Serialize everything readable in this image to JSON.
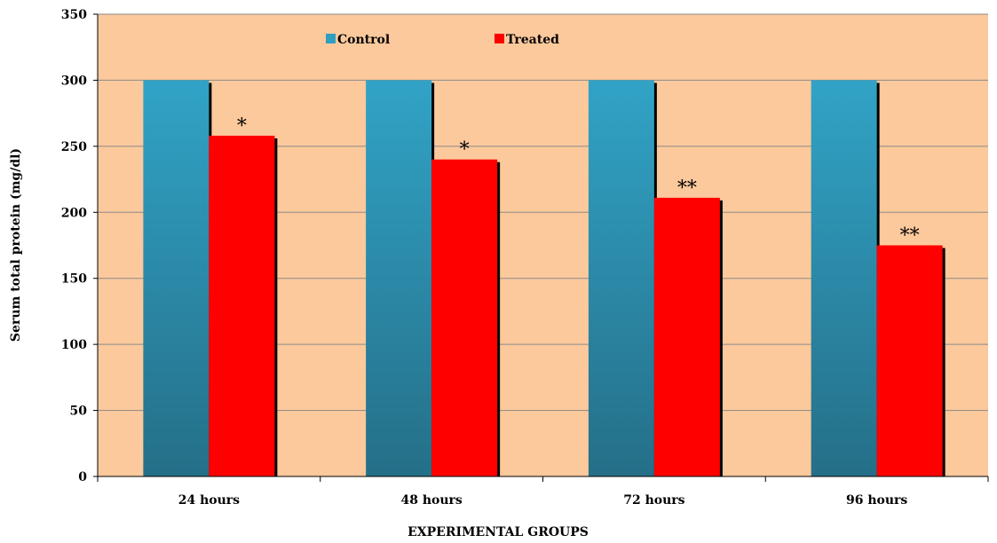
{
  "chart_data": {
    "type": "bar",
    "title": "",
    "xlabel": "EXPERIMENTAL GROUPS",
    "ylabel": "Serum total protein (mg/dl)",
    "ylim": [
      0,
      350
    ],
    "yticks": [
      0,
      50,
      100,
      150,
      200,
      250,
      300,
      350
    ],
    "grid": true,
    "legend_position": "top",
    "categories": [
      "24 hours",
      "48 hours",
      "72 hours",
      "96 hours"
    ],
    "series": [
      {
        "name": "Control",
        "values": [
          300,
          300,
          300,
          300
        ],
        "color": "#2f9ec1"
      },
      {
        "name": "Treated",
        "values": [
          258,
          240,
          211,
          175
        ],
        "color": "#ff0000"
      }
    ],
    "annotations": [
      "*",
      "*",
      "**",
      "**"
    ],
    "plot_background": "#fcc99c"
  }
}
